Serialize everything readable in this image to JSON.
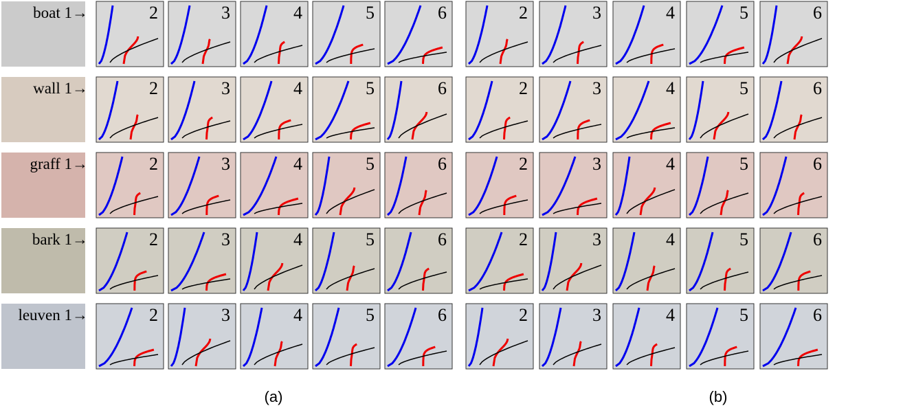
{
  "rows": [
    {
      "label": "boat 1→"
    },
    {
      "label": "wall 1→"
    },
    {
      "label": "graff 1→"
    },
    {
      "label": "bark 1→"
    },
    {
      "label": "leuven 1→"
    }
  ],
  "columns": [
    "2",
    "3",
    "4",
    "5",
    "6"
  ],
  "panels": [
    "(a)",
    "(b)"
  ]
}
